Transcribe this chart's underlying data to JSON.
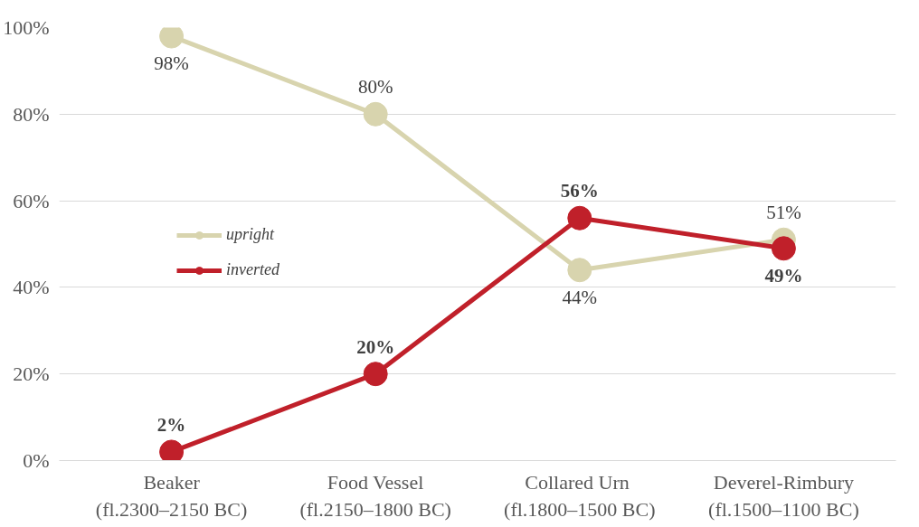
{
  "chart_data": {
    "type": "line",
    "categories": [
      "Beaker\n(fl.2300–2150 BC)",
      "Food Vessel\n(fl.2150–1800 BC)",
      "Collared  Urn\n(fl.1800–1500 BC)",
      "Deverel-Rimbury\n(fl.1500–1100 BC)"
    ],
    "series": [
      {
        "name": "upright",
        "color": "#d8d4ae",
        "values": [
          98,
          80,
          44,
          51
        ],
        "value_labels": [
          "98%",
          "80%",
          "44%",
          "51%"
        ]
      },
      {
        "name": "inverted",
        "color": "#c0202a",
        "values": [
          2,
          20,
          56,
          49
        ],
        "value_labels": [
          "2%",
          "20%",
          "56%",
          "49%"
        ]
      }
    ],
    "ylim": [
      0,
      100
    ],
    "yticks": [
      {
        "value": 0,
        "label": "0%"
      },
      {
        "value": 20,
        "label": "20%"
      },
      {
        "value": 40,
        "label": "40%"
      },
      {
        "value": 60,
        "label": "60%"
      },
      {
        "value": 80,
        "label": "80%"
      },
      {
        "value": 100,
        "label": "100%"
      }
    ],
    "grid": "y",
    "legend": "left",
    "marker": "circle",
    "line_style": "solid"
  }
}
